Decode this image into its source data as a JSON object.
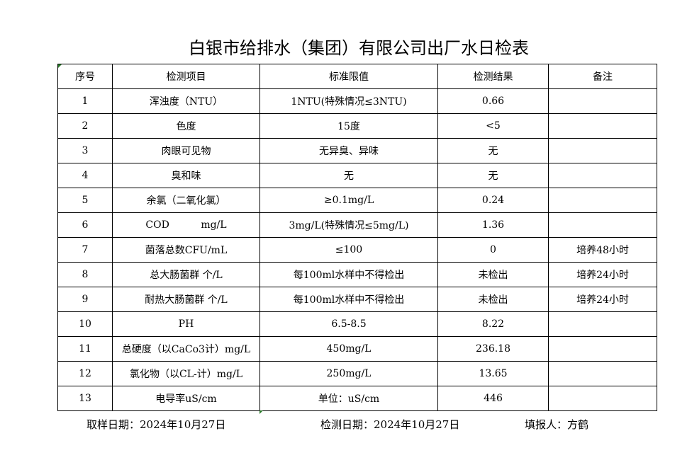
{
  "title": "白银市给排水（集团）有限公司出厂水日检表",
  "headers": [
    "序号",
    "检测项目",
    "标准限值",
    "检测结果",
    "备注"
  ],
  "rows": [
    [
      "1",
      "浑浊度（NTU）",
      "1NTU(特殊情况≤3NTU)",
      "0.66",
      ""
    ],
    [
      "2",
      "色度",
      "15度",
      "<5",
      ""
    ],
    [
      "3",
      "肉眼可见物",
      "无异臭、异味",
      "无",
      ""
    ],
    [
      "4",
      "臭和味",
      "无",
      "无",
      ""
    ],
    [
      "5",
      "余氯（二氧化氯）",
      "≥0.1mg/L",
      "0.24",
      ""
    ],
    [
      "6",
      "COD          mg/L",
      "3mg/L(特殊情况≤5mg/L)",
      "1.36",
      ""
    ],
    [
      "7",
      "菌落总数CFU/mL",
      "≤100",
      "0",
      "培养48小时"
    ],
    [
      "8",
      "总大肠菌群 个/L",
      "每100ml水样中不得检出",
      "未检出",
      "培养24小时"
    ],
    [
      "9",
      "耐热大肠菌群 个/L",
      "每100ml水样中不得检出",
      "未检出",
      "培养24小时"
    ],
    [
      "10",
      "PH",
      "6.5-8.5",
      "8.22",
      ""
    ],
    [
      "11",
      "总硬度（以CaCo3计）mg/L",
      "450mg/L",
      "236.18",
      ""
    ],
    [
      "12",
      "氯化物（以CL-计）mg/L",
      "250mg/L",
      "13.65",
      ""
    ],
    [
      "13",
      "电导率uS/cm",
      "单位：uS/cm",
      "446",
      ""
    ]
  ],
  "footer": {
    "sampling_date": "取样日期：2024年10月27日",
    "test_date": "检测日期：2024年10月27日",
    "reporter": "填报人：方鹤"
  }
}
